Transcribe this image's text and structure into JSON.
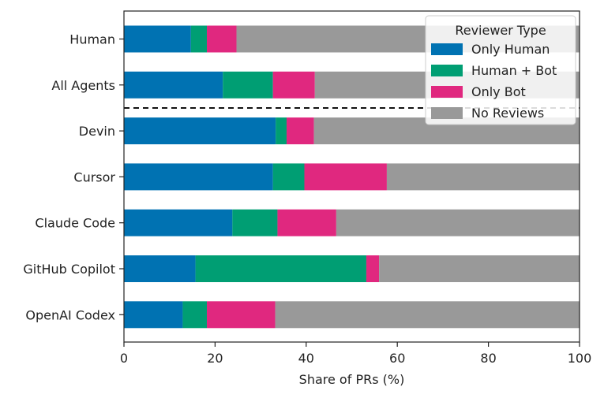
{
  "chart_data": {
    "type": "bar",
    "orientation": "horizontal",
    "stacked": true,
    "title": "",
    "xlabel": "Share of PRs (%)",
    "ylabel": "",
    "xlim": [
      0,
      100
    ],
    "xticks": [
      0,
      20,
      40,
      60,
      80,
      100
    ],
    "grid": false,
    "legend_title": "Reviewer Type",
    "legend_position": "top-right",
    "separator": "dashed line between All Agents and Devin",
    "categories": [
      "Human",
      "All Agents",
      "Devin",
      "Cursor",
      "Claude Code",
      "GitHub Copilot",
      "OpenAI Codex"
    ],
    "series": [
      {
        "name": "Only Human",
        "color": "#0072b2",
        "values": [
          14.7,
          21.7,
          33.3,
          32.7,
          23.8,
          15.7,
          12.9
        ]
      },
      {
        "name": "Human + Bot",
        "color": "#009e73",
        "values": [
          3.5,
          11.0,
          2.4,
          6.9,
          9.9,
          37.5,
          5.3
        ]
      },
      {
        "name": "Only Bot",
        "color": "#e0287f",
        "values": [
          6.5,
          9.2,
          6.0,
          18.1,
          12.9,
          2.8,
          15.0
        ]
      },
      {
        "name": "No Reviews",
        "color": "#999999",
        "values": [
          75.3,
          58.1,
          58.3,
          42.3,
          53.4,
          44.0,
          66.8
        ]
      }
    ]
  }
}
